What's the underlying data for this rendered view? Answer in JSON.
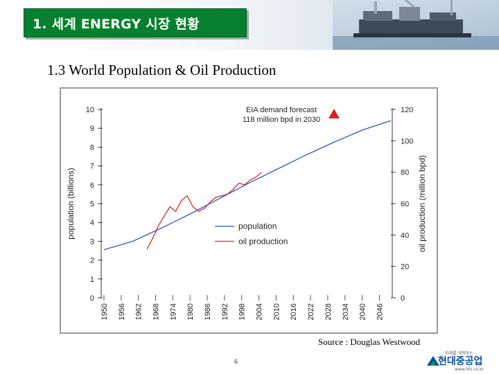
{
  "slide": {
    "title": "1. 세계 ENERGY 시장 현황",
    "subtitle": "1.3  World Population & Oil Production",
    "source": "Source : Douglas Westwood",
    "page_number": "6",
    "logo": {
      "slogan": "미래를 개척하는",
      "name": "현대중공업",
      "url": "www.hhi.co.kr"
    },
    "icons": [
      "offshore-platform-photo-icon",
      "hhi-logo-mark-icon",
      "forecast-triangle-icon"
    ],
    "colors": {
      "title_bg": "#06802e",
      "population_line": "#2f55c8",
      "oil_line": "#d42a2a",
      "forecast_marker": "#e02020"
    }
  },
  "chart_data": {
    "type": "line",
    "xlabel": "",
    "ylabel_left": "population (billions)",
    "ylabel_right": "oil production (million bpd)",
    "xlim": [
      1950,
      2050
    ],
    "ylim_left": [
      0,
      10
    ],
    "ylim_right": [
      0,
      120
    ],
    "x_ticks": [
      "1950",
      "1956",
      "1962",
      "1968",
      "1974",
      "1980",
      "1986",
      "1992",
      "1998",
      "2004",
      "2010",
      "2016",
      "2022",
      "2028",
      "2034",
      "2040",
      "2046"
    ],
    "y_ticks_left": [
      "0",
      "1",
      "2",
      "3",
      "4",
      "5",
      "6",
      "7",
      "8",
      "9",
      "10"
    ],
    "y_ticks_right": [
      "0",
      "20",
      "40",
      "60",
      "80",
      "100",
      "120"
    ],
    "grid": false,
    "legend_position": "lower-middle",
    "annotation": {
      "line1": "EIA demand forecast",
      "line2": "118 million bpd in 2030",
      "x": 2030,
      "y_right": 118
    },
    "series": [
      {
        "name": "population",
        "axis": "left",
        "x": [
          1950,
          1960,
          1970,
          1980,
          1990,
          2000,
          2010,
          2020,
          2030,
          2040,
          2050
        ],
        "y": [
          2.55,
          3.0,
          3.7,
          4.45,
          5.25,
          6.05,
          6.8,
          7.55,
          8.25,
          8.9,
          9.4
        ]
      },
      {
        "name": "oil production",
        "axis": "right",
        "x": [
          1965,
          1967,
          1969,
          1971,
          1973,
          1975,
          1977,
          1979,
          1981,
          1983,
          1985,
          1987,
          1989,
          1991,
          1993,
          1995,
          1997,
          1999,
          2001,
          2003,
          2005
        ],
        "y": [
          31,
          38,
          46,
          52,
          58,
          55,
          62,
          65,
          58,
          55,
          57,
          61,
          64,
          65,
          66,
          69,
          73,
          72,
          75,
          77,
          80
        ]
      }
    ]
  }
}
